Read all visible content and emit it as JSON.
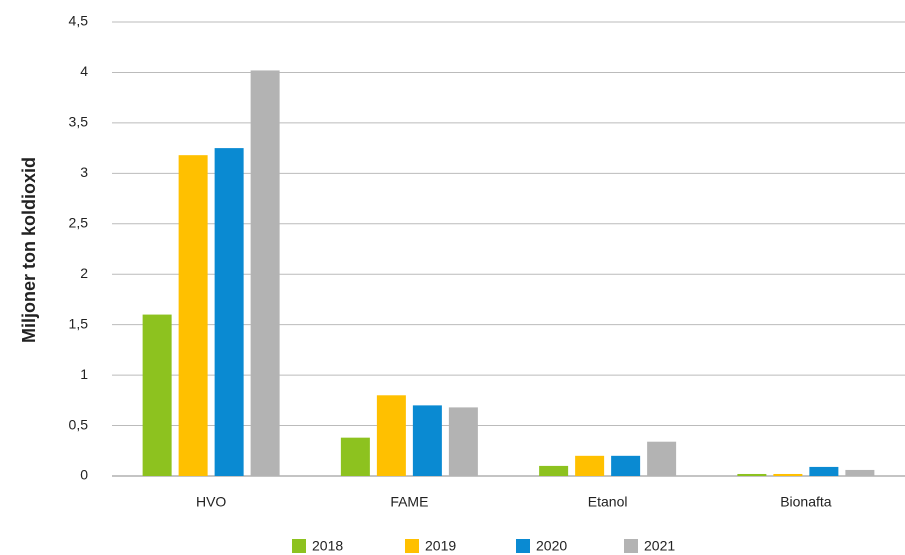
{
  "chart_data": {
    "type": "bar",
    "y_label": "Miljoner ton koldioxid",
    "categories": [
      "HVO",
      "FAME",
      "Etanol",
      "Bionafta"
    ],
    "series": [
      {
        "name": "2018",
        "color": "#8dc21f",
        "values": [
          1.6,
          0.38,
          0.1,
          0.02
        ]
      },
      {
        "name": "2019",
        "color": "#ffc000",
        "values": [
          3.18,
          0.8,
          0.2,
          0.02
        ]
      },
      {
        "name": "2020",
        "color": "#0a8ad2",
        "values": [
          3.25,
          0.7,
          0.2,
          0.09
        ]
      },
      {
        "name": "2021",
        "color": "#b3b3b3",
        "values": [
          4.02,
          0.68,
          0.34,
          0.06
        ]
      }
    ],
    "ylim": [
      0,
      4.5
    ],
    "yticks": [
      0,
      {
        "value": 0.5,
        "label": "0,5"
      },
      1,
      {
        "value": 1.5,
        "label": "1,5"
      },
      2,
      {
        "value": 2.5,
        "label": "2,5"
      },
      3,
      {
        "value": 3.5,
        "label": "3,5"
      },
      4,
      {
        "value": 4.5,
        "label": "4,5"
      }
    ],
    "grid": true,
    "legend": "bottom"
  }
}
